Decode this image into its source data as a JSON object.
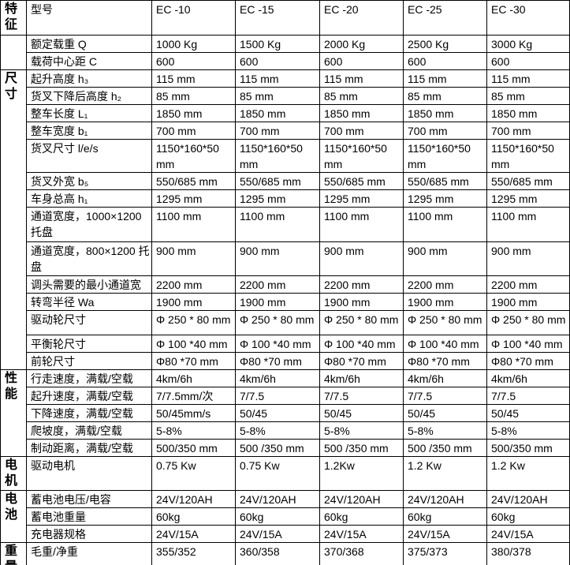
{
  "page": {
    "background_color": "#ffffff",
    "border_color": "#000000",
    "text_color": "#000000"
  },
  "table": {
    "sections": [
      {
        "category": "特征",
        "rows": [
          {
            "label": "型号",
            "values": [
              "EC -10",
              "EC -15",
              "EC -20",
              "EC -25",
              "EC -30"
            ]
          }
        ]
      },
      {
        "category": "",
        "rows": [
          {
            "label": "额定载重 Q",
            "values": [
              "1000 Kg",
              "1500 Kg",
              "2000 Kg",
              "2500 Kg",
              "3000 Kg"
            ]
          },
          {
            "label": "载荷中心距 C",
            "values": [
              "600",
              "600",
              "600",
              "600",
              "600"
            ]
          }
        ]
      },
      {
        "category": "尺寸",
        "rows": [
          {
            "label": "起升高度 h₃",
            "values": [
              "115 mm",
              "115 mm",
              "115 mm",
              "115 mm",
              "115 mm"
            ]
          },
          {
            "label": "货叉下降后高度 h₂",
            "values": [
              "85 mm",
              "85 mm",
              "85 mm",
              "85 mm",
              "85 mm"
            ]
          },
          {
            "label": "整车长度 L₁",
            "values": [
              "1850 mm",
              "1850 mm",
              "1850 mm",
              "1850 mm",
              "1850 mm"
            ]
          },
          {
            "label": "整车宽度 b₁",
            "values": [
              "700 mm",
              "700 mm",
              "700 mm",
              "700 mm",
              "700 mm"
            ]
          },
          {
            "label": "货叉尺寸 l/e/s",
            "values": [
              "1150*160*50 mm",
              "1150*160*50 mm",
              "1150*160*50 mm",
              "1150*160*50 mm",
              "1150*160*50 mm"
            ]
          },
          {
            "label": "货叉外宽 b₅",
            "values": [
              "550/685 mm",
              "550/685 mm",
              "550/685 mm",
              "550/685 mm",
              "550/685 mm"
            ]
          },
          {
            "label": "车身总高 h₁",
            "values": [
              "1295 mm",
              "1295 mm",
              "1295 mm",
              "1295 mm",
              "1295 mm"
            ]
          },
          {
            "label": "通道宽度，1000×1200 托盘",
            "values": [
              "1100 mm",
              "1100 mm",
              "1100 mm",
              "1100 mm",
              "1100 mm"
            ]
          },
          {
            "label": "通道宽度，800×1200 托盘",
            "values": [
              "900 mm",
              "900 mm",
              "900 mm",
              "900 mm",
              "900 mm"
            ]
          },
          {
            "label": "调头需要的最小通道宽",
            "values": [
              "2200 mm",
              "2200 mm",
              "2200 mm",
              "2200 mm",
              "2200 mm"
            ]
          },
          {
            "label": "转弯半径 Wa",
            "values": [
              "1900 mm",
              "1900 mm",
              "1900 mm",
              "1900 mm",
              "1900 mm"
            ]
          },
          {
            "label": "驱动轮尺寸",
            "values": [
              "Φ 250 * 80 mm",
              "Φ 250 * 80 mm",
              "Φ 250 * 80 mm",
              "Φ 250 * 80 mm",
              "Φ 250 * 80 mm"
            ]
          },
          {
            "label": "平衡轮尺寸",
            "values": [
              "Φ 100 *40 mm",
              "Φ 100 *40 mm",
              "Φ 100 *40 mm",
              "Φ 100 *40 mm",
              "Φ 100 *40 mm"
            ]
          },
          {
            "label": "前轮尺寸",
            "values": [
              "Φ80 *70 mm",
              "Φ80 *70 mm",
              "Φ80 *70 mm",
              "Φ80 *70 mm",
              "Φ80 *70 mm"
            ]
          }
        ]
      },
      {
        "category": "性能",
        "rows": [
          {
            "label": "行走速度，满载/空载",
            "values": [
              "4km/6h",
              "4km/6h",
              "4km/6h",
              "4km/6h",
              "4km/6h"
            ]
          },
          {
            "label": "起升速度，满载/空载",
            "values": [
              "7/7.5mm/次",
              "7/7.5",
              "7/7.5",
              "7/7.5",
              "7/7.5"
            ]
          },
          {
            "label": "下降速度，满载/空载",
            "values": [
              "50/45mm/s",
              "50/45",
              "50/45",
              "50/45",
              "50/45"
            ]
          },
          {
            "label": "爬坡度，满载/空载",
            "values": [
              "5-8%",
              "5-8%",
              "5-8%",
              "5-8%",
              "5-8%"
            ]
          },
          {
            "label": "制动距离，满载/空载",
            "values": [
              "500/350 mm",
              "500 /350 mm",
              "500 /350 mm",
              "500 /350 mm",
              "500/350 mm"
            ]
          }
        ]
      },
      {
        "category": "电机",
        "rows": [
          {
            "label": "驱动电机",
            "values": [
              "0.75 Kw",
              "0.75 Kw",
              "1.2Kw",
              "1.2 Kw",
              "1.2 Kw"
            ]
          }
        ]
      },
      {
        "category": "电池",
        "rows": [
          {
            "label": "蓄电池电压/电容",
            "values": [
              "24V/120AH",
              "24V/120AH",
              "24V/120AH",
              "24V/120AH",
              "24V/120AH"
            ]
          },
          {
            "label": "蓄电池重量",
            "values": [
              "60kg",
              "60kg",
              "60kg",
              "60kg",
              "60kg"
            ]
          },
          {
            "label": "充电器规格",
            "values": [
              "24V/15A",
              "24V/15A",
              "24V/15A",
              "24V/15A",
              "24V/15A"
            ]
          }
        ]
      },
      {
        "category": "重量",
        "rows": [
          {
            "label": "毛重/净重",
            "values": [
              "355/352",
              "360/358",
              "370/368",
              "375/373",
              "380/378"
            ]
          }
        ]
      }
    ]
  }
}
